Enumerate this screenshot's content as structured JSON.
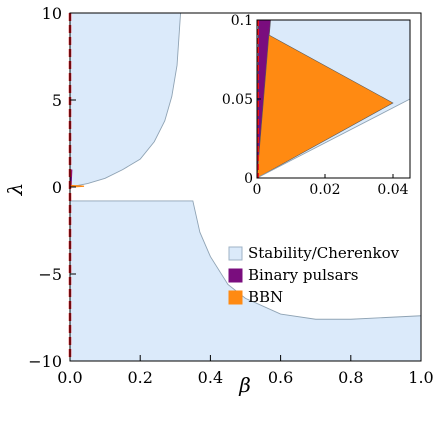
{
  "chart_data": [
    {
      "type": "area",
      "xlabel": "β",
      "ylabel": "λ",
      "xlim": [
        0,
        1.0
      ],
      "ylim": [
        -10,
        10
      ],
      "xticks": [
        "0.0",
        "0.2",
        "0.4",
        "0.6",
        "0.8",
        "1.0"
      ],
      "yticks": [
        "−10",
        "−5",
        "0",
        "5",
        "10"
      ],
      "grid": false,
      "legend_position": "bottom-right",
      "legend": [
        {
          "label": "Stability/Cherenkov",
          "color": "#dbeafa"
        },
        {
          "label": "Binary pulsars",
          "color": "#7a0d7e"
        },
        {
          "label": "BBN",
          "color": "#ff8a12"
        }
      ],
      "series": [
        {
          "name": "Stability/Cherenkov",
          "color": "#dbeafa",
          "regions": [
            {
              "x": [
                0,
                0.05,
                0.1,
                0.15,
                0.2,
                0.24,
                0.27,
                0.29,
                0.305,
                0.315
              ],
              "y_upper": [
                10,
                10,
                10,
                10,
                10,
                10,
                10,
                10,
                10,
                10
              ],
              "y_lower": [
                0.0,
                0.2,
                0.5,
                1.0,
                1.6,
                2.6,
                3.8,
                5.2,
                7.0,
                10
              ]
            },
            {
              "x": [
                0,
                0.35,
                0.37,
                0.4,
                0.45,
                0.5,
                0.6,
                0.7,
                0.8,
                0.9,
                1.0
              ],
              "y_upper": [
                -0.8,
                -0.8,
                -2.6,
                -4.0,
                -5.6,
                -6.4,
                -7.3,
                -7.6,
                -7.6,
                -7.5,
                -7.4
              ],
              "y_lower": [
                -10,
                -10,
                -10,
                -10,
                -10,
                -10,
                -10,
                -10,
                -10,
                -10,
                -10
              ]
            }
          ]
        },
        {
          "name": "Binary pulsars",
          "color": "#7a0d7e",
          "x": [
            0,
            0.003,
            0.005
          ],
          "y": [
            0,
            0.1,
            1.0
          ]
        },
        {
          "name": "BBN",
          "color": "#ff8a12",
          "x": [
            0,
            0.0035,
            0.04
          ],
          "y": [
            0,
            0.09,
            0.045
          ]
        }
      ],
      "reference_line": {
        "x": 0,
        "style": "dashed",
        "color": "#e8141c"
      }
    },
    {
      "type": "area",
      "role": "inset",
      "xlim": [
        0,
        0.045
      ],
      "ylim": [
        0,
        0.1
      ],
      "xticks": [
        "0",
        "0.02",
        "0.04"
      ],
      "yticks": [
        "0",
        "0.05",
        "0.1"
      ],
      "series": [
        {
          "name": "Stability/Cherenkov",
          "color": "#dbeafa",
          "x": [
            0.0,
            0.045,
            0.045,
            0.0
          ],
          "y": [
            0.1,
            0.1,
            0.05,
            0.0
          ]
        },
        {
          "name": "Binary pulsars",
          "color": "#7a0d7e",
          "x": [
            0.0,
            0.004,
            0.0004
          ],
          "y": [
            0.0,
            0.1,
            0.1
          ]
        },
        {
          "name": "BBN",
          "color": "#ff8a12",
          "x": [
            0.0,
            0.0035,
            0.04
          ],
          "y": [
            0.0,
            0.0905,
            0.0475
          ]
        }
      ],
      "reference_line": {
        "x": 0,
        "style": "dashed",
        "color": "#e8141c"
      }
    }
  ]
}
